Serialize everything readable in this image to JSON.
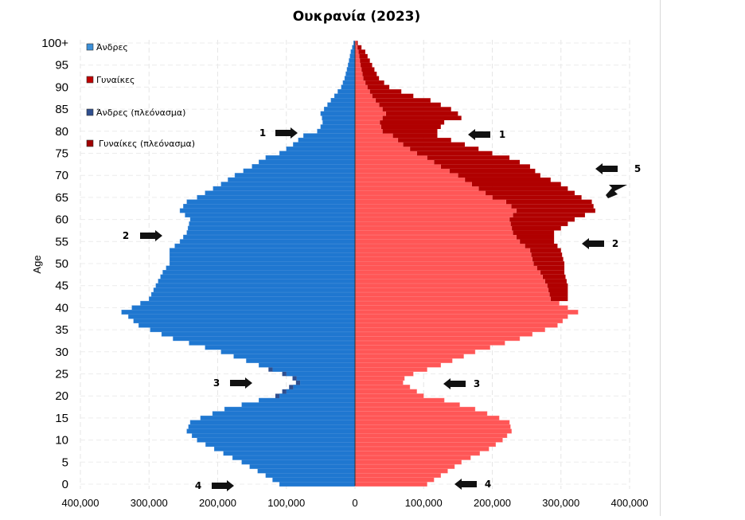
{
  "chart_data": {
    "type": "bar",
    "orientation": "horizontal",
    "title": "Ουκρανία (2023)",
    "ylabel": "Age",
    "xlabel": "",
    "xlim": [
      -400000,
      400000
    ],
    "x_tick_labels": [
      "400,000",
      "300,000",
      "200,000",
      "100,000",
      "0",
      "100,000",
      "200,000",
      "300,000",
      "400,000"
    ],
    "x_tick_values": [
      -400000,
      -300000,
      -200000,
      -100000,
      0,
      100000,
      200000,
      300000,
      400000
    ],
    "y_tick_labels": [
      "0",
      "5",
      "10",
      "15",
      "20",
      "25",
      "30",
      "35",
      "40",
      "45",
      "50",
      "55",
      "60",
      "65",
      "70",
      "75",
      "80",
      "85",
      "90",
      "95",
      "100+"
    ],
    "y_tick_values": [
      0,
      5,
      10,
      15,
      20,
      25,
      30,
      35,
      40,
      45,
      50,
      55,
      60,
      65,
      70,
      75,
      80,
      85,
      90,
      95,
      100
    ],
    "grid": true,
    "legend_position": "top-left",
    "legend": [
      {
        "label": "Άνδρες",
        "color": "#1f77d0"
      },
      {
        "label": "Γυναίκες",
        "color": "#c00000"
      },
      {
        "label": "Άνδρες (πλεόνασμα)",
        "color": "#2f4f8f"
      },
      {
        "label": "Γυναίκες (πλεόνασμα)",
        "color": "#a00000"
      }
    ],
    "colors": {
      "male": "#1f77d0",
      "female": "#ff5656",
      "male_surplus": "#2f4f8f",
      "female_surplus": "#b00000"
    },
    "age_keypoints": [
      0,
      2,
      5,
      8,
      10,
      12,
      14,
      15,
      17,
      19,
      20,
      22,
      23,
      24,
      25,
      27,
      30,
      33,
      36,
      38,
      39,
      40,
      42,
      45,
      48,
      50,
      53,
      55,
      57,
      60,
      62,
      64,
      65,
      68,
      70,
      72,
      74,
      75,
      77,
      79,
      80,
      81,
      82,
      83,
      84,
      85,
      86,
      87,
      88,
      90,
      92,
      95,
      98,
      100
    ],
    "series": [
      {
        "name": "Άνδρες",
        "values": [
          110000,
          130000,
          165000,
          205000,
          230000,
          245000,
          240000,
          225000,
          190000,
          140000,
          110000,
          90000,
          80000,
          85000,
          100000,
          140000,
          195000,
          265000,
          315000,
          330000,
          340000,
          325000,
          300000,
          290000,
          280000,
          270000,
          270000,
          255000,
          245000,
          240000,
          255000,
          245000,
          230000,
          195000,
          175000,
          150000,
          130000,
          110000,
          90000,
          75000,
          55000,
          50000,
          47000,
          48000,
          50000,
          45000,
          40000,
          35000,
          30000,
          20000,
          15000,
          10000,
          6000,
          2000
        ]
      },
      {
        "name": "Γυναίκες",
        "values": [
          105000,
          125000,
          155000,
          195000,
          215000,
          228000,
          225000,
          210000,
          175000,
          130000,
          100000,
          80000,
          70000,
          72000,
          85000,
          125000,
          175000,
          240000,
          295000,
          310000,
          325000,
          310000,
          285000,
          280000,
          270000,
          260000,
          255000,
          240000,
          230000,
          225000,
          235000,
          220000,
          200000,
          170000,
          150000,
          125000,
          105000,
          90000,
          70000,
          55000,
          40000,
          38000,
          36000,
          40000,
          45000,
          40000,
          35000,
          30000,
          25000,
          18000,
          12000,
          8000,
          5000,
          2000
        ]
      },
      {
        "name": "Γυναίκες (πλεόνασμα)",
        "values": [
          0,
          0,
          0,
          0,
          0,
          0,
          0,
          0,
          0,
          0,
          0,
          0,
          0,
          0,
          0,
          0,
          0,
          0,
          0,
          0,
          0,
          0,
          310000,
          310000,
          305000,
          305000,
          300000,
          290000,
          290000,
          320000,
          350000,
          345000,
          330000,
          300000,
          270000,
          255000,
          225000,
          200000,
          160000,
          120000,
          120000,
          125000,
          130000,
          155000,
          150000,
          140000,
          125000,
          110000,
          85000,
          50000,
          35000,
          25000,
          15000,
          4000
        ]
      }
    ],
    "annotations": [
      {
        "label": "1",
        "side": "male",
        "age": 80
      },
      {
        "label": "1",
        "side": "female",
        "age": 80
      },
      {
        "label": "2",
        "side": "male",
        "age": 56
      },
      {
        "label": "2",
        "side": "female",
        "age": 55
      },
      {
        "label": "3",
        "side": "male",
        "age": 23
      },
      {
        "label": "3",
        "side": "female",
        "age": 23
      },
      {
        "label": "4",
        "side": "male",
        "age": 0
      },
      {
        "label": "4",
        "side": "female",
        "age": 0
      },
      {
        "label": "5",
        "side": "female",
        "age": 72
      }
    ]
  }
}
